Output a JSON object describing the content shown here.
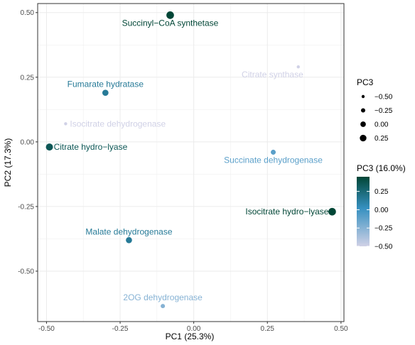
{
  "chart_data": {
    "type": "scatter",
    "xlabel": "PC1 (25.3%)",
    "ylabel": "PC2 (17.3%)",
    "xlim": [
      -0.53,
      0.51
    ],
    "ylim": [
      -0.695,
      0.535
    ],
    "x_ticks": [
      -0.5,
      -0.25,
      0.0,
      0.25,
      0.5
    ],
    "x_tick_labels": [
      "-0.50",
      "-0.25",
      "0.00",
      "0.25",
      "0.50"
    ],
    "y_ticks": [
      -0.5,
      -0.25,
      0.0,
      0.25,
      0.5
    ],
    "y_tick_labels": [
      "-0.50",
      "-0.25",
      "0.00",
      "0.25",
      "0.50"
    ],
    "grid": true,
    "points": [
      {
        "label": "Succinyl−CoA synthetase",
        "x": -0.08,
        "y": 0.49,
        "pc3": 0.45,
        "label_pos": "below"
      },
      {
        "label": "Citrate synthase",
        "x": 0.355,
        "y": 0.29,
        "pc3": -0.5,
        "label_pos": "below-left"
      },
      {
        "label": "Fumarate hydratase",
        "x": -0.3,
        "y": 0.19,
        "pc3": 0.15,
        "label_pos": "above"
      },
      {
        "label": "Isocitrate dehydrogenase",
        "x": -0.435,
        "y": 0.07,
        "pc3": -0.5,
        "label_pos": "right"
      },
      {
        "label": "Citrate hydro−lyase",
        "x": -0.49,
        "y": -0.02,
        "pc3": 0.35,
        "label_pos": "right"
      },
      {
        "label": "Succinate dehydrogenase",
        "x": 0.27,
        "y": -0.04,
        "pc3": -0.1,
        "label_pos": "below"
      },
      {
        "label": "Isocitrate hydro−lyase",
        "x": 0.47,
        "y": -0.27,
        "pc3": 0.45,
        "label_pos": "left"
      },
      {
        "label": "Malate dehydrogenase",
        "x": -0.22,
        "y": -0.38,
        "pc3": 0.15,
        "label_pos": "above"
      },
      {
        "label": "2OG dehydrogenase",
        "x": -0.105,
        "y": -0.635,
        "pc3": -0.25,
        "label_pos": "above"
      }
    ],
    "legend": {
      "size_title": "PC3",
      "size_entries": [
        {
          "label": "−0.50",
          "value": -0.5
        },
        {
          "label": "−0.25",
          "value": -0.25
        },
        {
          "label": "0.00",
          "value": 0.0
        },
        {
          "label": "0.25",
          "value": 0.25
        }
      ],
      "color_title": "PC3 (16.0%)",
      "color_ticks": [
        {
          "label": "0.25",
          "value": 0.25
        },
        {
          "label": "0.00",
          "value": 0.0
        },
        {
          "label": "−0.25",
          "value": -0.25
        },
        {
          "label": "−0.50",
          "value": -0.5
        }
      ],
      "color_range": [
        -0.5,
        0.45
      ],
      "color_low": "#d0d1e6",
      "color_mid": "#3690c0",
      "color_high": "#014636"
    }
  }
}
